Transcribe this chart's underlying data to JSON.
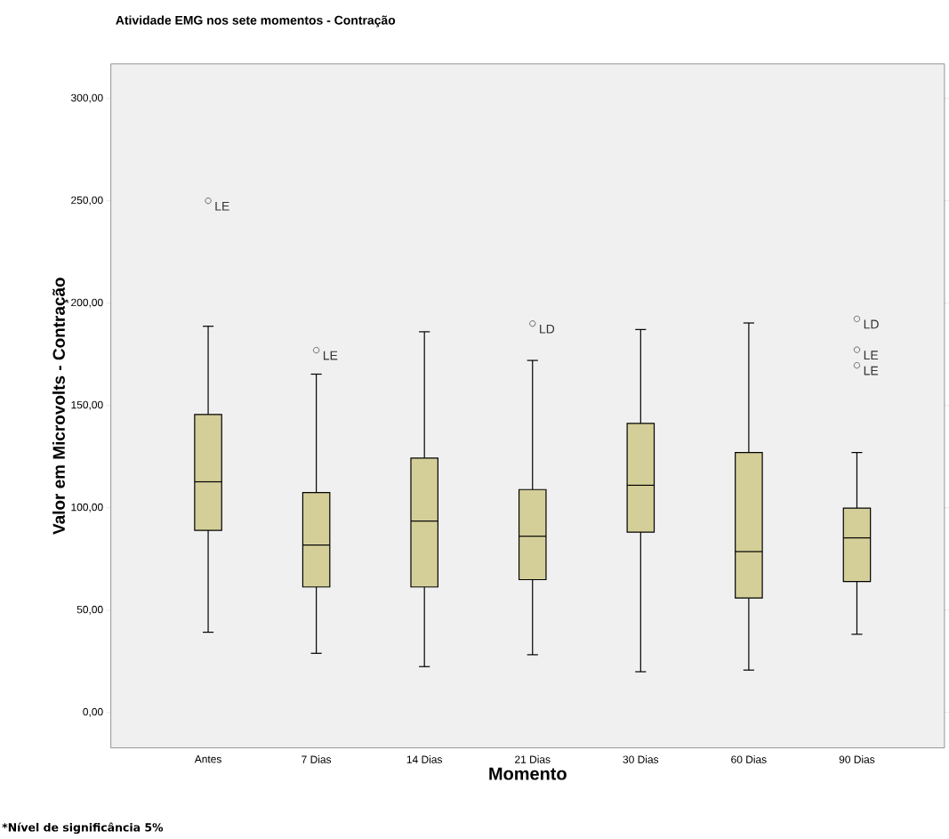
{
  "chart_data": {
    "type": "box",
    "title": "Atividade EMG nos sete momentos - Contração",
    "xlabel": "Momento",
    "ylabel": "Valor em Microvolts - Contração",
    "categories": [
      "Antes",
      "7 Dias",
      "14 Dias",
      "21 Dias",
      "30 Dias",
      "60 Dias",
      "90 Dias"
    ],
    "boxes": [
      {
        "low": 39.2,
        "q1": 89.0,
        "median": 112.7,
        "q3": 145.6,
        "high": 188.7,
        "outliers": [
          250
        ]
      },
      {
        "low": 28.9,
        "q1": 61.3,
        "median": 81.8,
        "q3": 107.4,
        "high": 165.3,
        "outliers": [
          177
        ]
      },
      {
        "low": 22.4,
        "q1": 61.3,
        "median": 93.5,
        "q3": 124.3,
        "high": 186.0
      },
      {
        "low": 28.2,
        "q1": 64.9,
        "median": 86.1,
        "q3": 108.9,
        "high": 172.0,
        "outliers": [
          190
        ]
      },
      {
        "low": 19.9,
        "q1": 88.1,
        "median": 111.0,
        "q3": 141.2,
        "high": 187.1
      },
      {
        "low": 20.7,
        "q1": 55.9,
        "median": 78.6,
        "q3": 127.0,
        "high": 190.3
      },
      {
        "low": 38.2,
        "q1": 64.0,
        "median": 85.3,
        "q3": 99.8,
        "high": 127.0,
        "outliers": [
          192.3,
          177.2,
          169.6
        ]
      }
    ],
    "color": "#d4cf98",
    "ylim": [
      -17.3,
      316.9
    ],
    "yticks": [
      {
        "value": 0,
        "label": "0,00"
      },
      {
        "value": 50,
        "label": "50,00"
      },
      {
        "value": 100,
        "label": "100,00"
      },
      {
        "value": 150,
        "label": "150,00"
      },
      {
        "value": 200,
        "label": "200,00"
      },
      {
        "value": 250,
        "label": "250,00"
      },
      {
        "value": 300,
        "label": "300,00"
      }
    ],
    "marker": "circle",
    "annotations": [
      "LE",
      "LE",
      "LD",
      "LD",
      "LE",
      "LE",
      "*Nível de significância 5%"
    ]
  }
}
